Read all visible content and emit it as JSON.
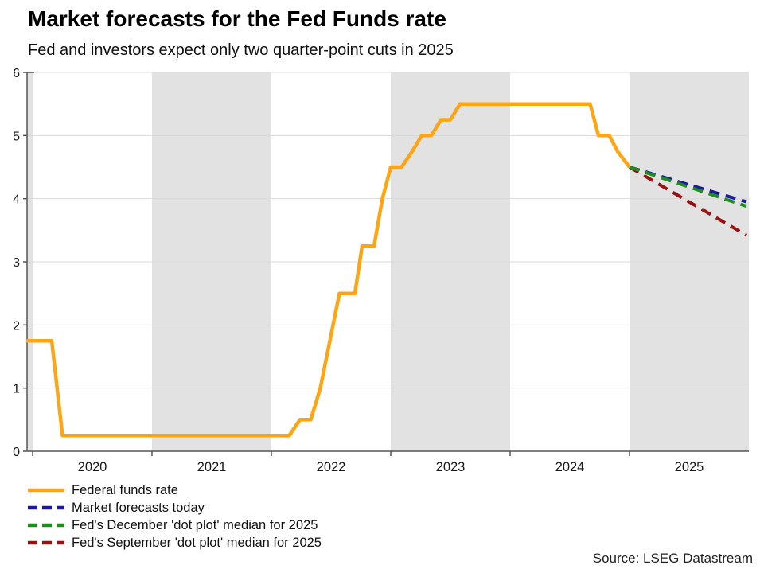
{
  "header": {
    "title": "Market forecasts for the Fed Funds rate",
    "subtitle": "Fed and investors expect only two quarter-point cuts in 2025"
  },
  "source_note": "Source: LSEG Datastream",
  "legend": [
    {
      "label": "Federal funds rate",
      "color": "#FFA513",
      "dashed": false
    },
    {
      "label": "Market forecasts today",
      "color": "#1A1A9C",
      "dashed": true
    },
    {
      "label": "Fed's December 'dot plot' median for 2025",
      "color": "#1E8C1E",
      "dashed": true
    },
    {
      "label": "Fed's September 'dot plot' median for 2025",
      "color": "#991111",
      "dashed": true
    }
  ],
  "chart_data": {
    "type": "line",
    "title": "Market forecasts for the Fed Funds rate",
    "subtitle": "Fed and investors expect only two quarter-point cuts in 2025",
    "xlabel": "",
    "ylabel": "",
    "xlim": [
      2019.95,
      2026.0
    ],
    "ylim": [
      0,
      6
    ],
    "yticks": [
      0,
      1,
      2,
      3,
      4,
      5,
      6
    ],
    "gridline_values": [
      1,
      2,
      3,
      4,
      5,
      6
    ],
    "xtick_marks": [
      2020,
      2021,
      2022,
      2023,
      2024,
      2025
    ],
    "xtick_labels": [
      "2020",
      "2021",
      "2022",
      "2023",
      "2024",
      "2025"
    ],
    "xtick_label_centers": [
      2020.5,
      2021.5,
      2022.5,
      2023.5,
      2024.5,
      2025.5
    ],
    "shaded_bands": [
      [
        2019.95,
        2020.0
      ],
      [
        2021.0,
        2022.0
      ],
      [
        2023.0,
        2024.0
      ],
      [
        2025.0,
        2026.0
      ]
    ],
    "band_color": "#e2e2e2",
    "grid_color": "#d9d9d9",
    "axis_color": "#555555",
    "tick_label_color": "#1a1a1a",
    "legend_position": "bottom-left",
    "grid": true,
    "series": [
      {
        "name": "Federal funds rate",
        "color": "#FFA513",
        "dash": null,
        "width": 4.5,
        "points": [
          [
            2019.95,
            1.75
          ],
          [
            2020.16,
            1.75
          ],
          [
            2020.25,
            0.25
          ],
          [
            2022.15,
            0.25
          ],
          [
            2022.24,
            0.5
          ],
          [
            2022.33,
            0.5
          ],
          [
            2022.41,
            1.0
          ],
          [
            2022.49,
            1.75
          ],
          [
            2022.57,
            2.5
          ],
          [
            2022.7,
            2.5
          ],
          [
            2022.76,
            3.25
          ],
          [
            2022.86,
            3.25
          ],
          [
            2022.93,
            4.0
          ],
          [
            2023.0,
            4.5
          ],
          [
            2023.09,
            4.5
          ],
          [
            2023.18,
            4.75
          ],
          [
            2023.26,
            5.0
          ],
          [
            2023.34,
            5.0
          ],
          [
            2023.42,
            5.25
          ],
          [
            2023.5,
            5.25
          ],
          [
            2023.58,
            5.5
          ],
          [
            2024.67,
            5.5
          ],
          [
            2024.74,
            5.0
          ],
          [
            2024.83,
            5.0
          ],
          [
            2024.9,
            4.75
          ],
          [
            2025.0,
            4.5
          ]
        ]
      },
      {
        "name": "Fed's September 'dot plot' median for 2025",
        "color": "#991111",
        "dash": [
          13,
          8
        ],
        "width": 4,
        "points": [
          [
            2025.0,
            4.5
          ],
          [
            2025.98,
            3.42
          ]
        ]
      },
      {
        "name": "Market forecasts today",
        "color": "#1A1A9C",
        "dash": [
          13,
          8
        ],
        "width": 4,
        "points": [
          [
            2025.0,
            4.5
          ],
          [
            2025.98,
            3.95
          ]
        ]
      },
      {
        "name": "Fed's December 'dot plot' median for 2025",
        "color": "#1E8C1E",
        "dash": [
          13,
          8
        ],
        "width": 4,
        "points": [
          [
            2025.0,
            4.5
          ],
          [
            2025.98,
            3.88
          ]
        ]
      }
    ]
  }
}
